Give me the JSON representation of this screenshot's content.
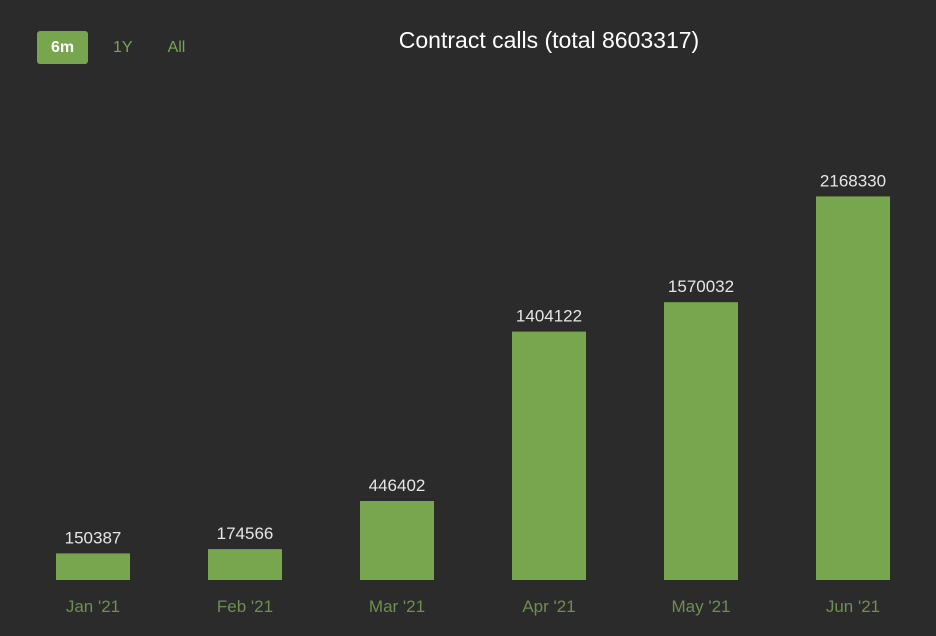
{
  "range_selector": {
    "buttons": [
      {
        "label": "6m",
        "active": true
      },
      {
        "label": "1Y",
        "active": false
      },
      {
        "label": "All",
        "active": false
      }
    ]
  },
  "colors": {
    "background": "#2b2b2b",
    "bar": "#78a64e",
    "title": "#ffffff",
    "data_label": "#e6e6e6",
    "tick_label": "#6d8f4f"
  },
  "chart_data": {
    "type": "bar",
    "title": "Contract calls (total 8603317)",
    "xlabel": "",
    "ylabel": "",
    "categories": [
      "Jan '21",
      "Feb '21",
      "Mar '21",
      "Apr '21",
      "May '21",
      "Jun '21"
    ],
    "values": [
      150387,
      174566,
      446402,
      1404122,
      1570032,
      2168330
    ],
    "ylim": [
      0,
      2600000
    ],
    "grid": false,
    "legend": "none"
  }
}
